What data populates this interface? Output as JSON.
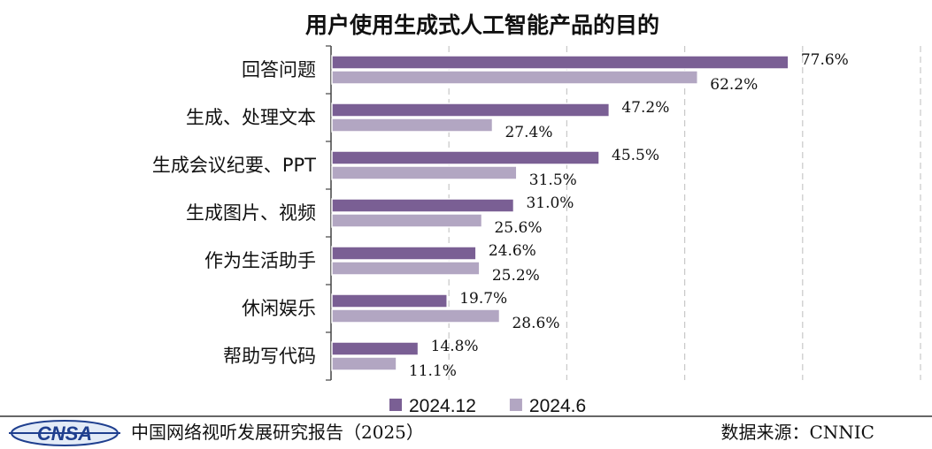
{
  "chart_data": {
    "type": "bar",
    "orientation": "horizontal",
    "title": "用户使用生成式人工智能产品的目的",
    "categories": [
      "回答问题",
      "生成、处理文本",
      "生成会议纪要、PPT",
      "生成图片、视频",
      "作为生活助手",
      "休闲娱乐",
      "帮助写代码"
    ],
    "series": [
      {
        "name": "2024.12",
        "values": [
          77.6,
          47.2,
          45.5,
          31.0,
          24.6,
          19.7,
          14.8
        ],
        "labels": [
          "77.6%",
          "47.2%",
          "45.5%",
          "31.0%",
          "24.6%",
          "19.7%",
          "14.8%"
        ],
        "color": "#7a5f94"
      },
      {
        "name": "2024.6",
        "values": [
          62.2,
          27.4,
          31.5,
          25.6,
          25.2,
          28.6,
          11.1
        ],
        "labels": [
          "62.2%",
          "27.4%",
          "31.5%",
          "25.6%",
          "25.2%",
          "28.6%",
          "11.1%"
        ],
        "color": "#b2a6c2"
      }
    ],
    "xlim": [
      0,
      100
    ],
    "grid": true,
    "grid_style": "dashed vertical",
    "legend_position": "bottom"
  },
  "footer": {
    "logo": "CNSA",
    "report": "中国网络视听发展研究报告（2025）",
    "source": "数据来源：CNNIC"
  }
}
